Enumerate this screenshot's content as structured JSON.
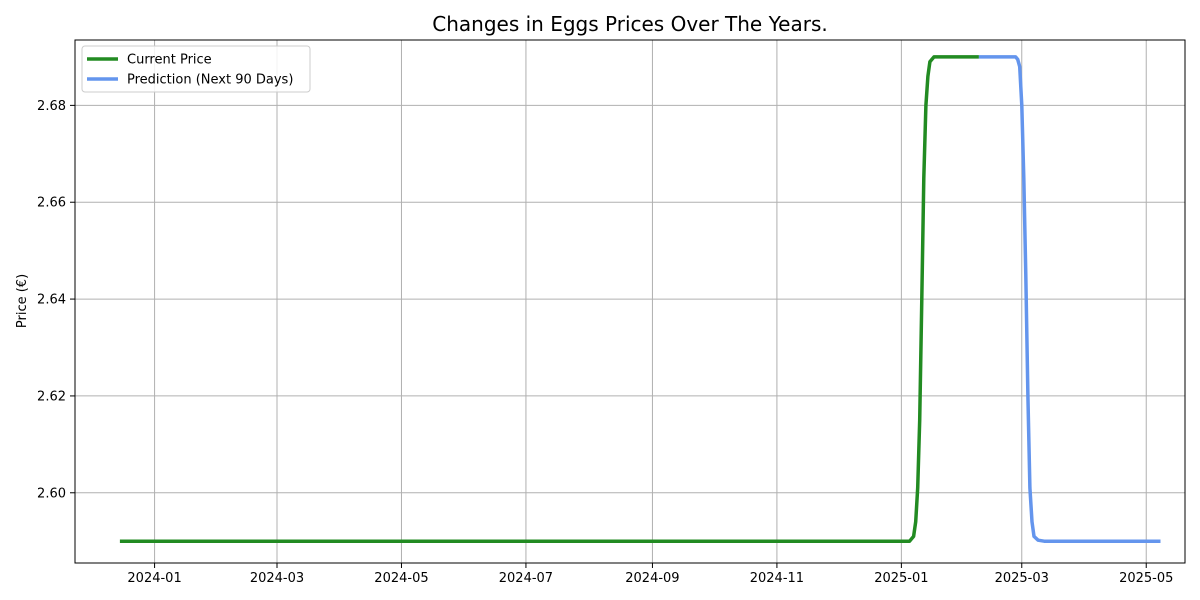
{
  "chart_data": {
    "type": "line",
    "title": "Changes in Eggs Prices Over The Years.",
    "xlabel": "",
    "ylabel": "Price (€)",
    "x_ticks": [
      "2024-01",
      "2024-03",
      "2024-05",
      "2024-07",
      "2024-09",
      "2024-11",
      "2025-01",
      "2025-03",
      "2025-05"
    ],
    "y_ticks": [
      "2.60",
      "2.62",
      "2.64",
      "2.66",
      "2.68"
    ],
    "xlim": [
      "2023-11-23",
      "2025-05-20"
    ],
    "ylim": [
      2.5855,
      2.6935
    ],
    "grid": true,
    "legend_position": "top-left",
    "series": [
      {
        "name": "Current Price",
        "color": "#228b22",
        "points": [
          [
            "2023-12-15",
            2.59
          ],
          [
            "2025-01-01",
            2.59
          ],
          [
            "2025-01-05",
            2.59
          ],
          [
            "2025-01-07",
            2.591
          ],
          [
            "2025-01-08",
            2.594
          ],
          [
            "2025-01-09",
            2.601
          ],
          [
            "2025-01-10",
            2.615
          ],
          [
            "2025-01-11",
            2.64
          ],
          [
            "2025-01-12",
            2.665
          ],
          [
            "2025-01-13",
            2.68
          ],
          [
            "2025-01-14",
            2.686
          ],
          [
            "2025-01-15",
            2.689
          ],
          [
            "2025-01-17",
            2.69
          ],
          [
            "2025-02-08",
            2.69
          ]
        ]
      },
      {
        "name": "Prediction (Next 90 Days)",
        "color": "#6495ed",
        "points": [
          [
            "2025-02-08",
            2.69
          ],
          [
            "2025-02-26",
            2.69
          ],
          [
            "2025-02-27",
            2.6895
          ],
          [
            "2025-02-28",
            2.688
          ],
          [
            "2025-03-01",
            2.68
          ],
          [
            "2025-03-02",
            2.665
          ],
          [
            "2025-03-03",
            2.645
          ],
          [
            "2025-03-04",
            2.62
          ],
          [
            "2025-03-05",
            2.601
          ],
          [
            "2025-03-06",
            2.594
          ],
          [
            "2025-03-07",
            2.591
          ],
          [
            "2025-03-09",
            2.5902
          ],
          [
            "2025-03-12",
            2.59
          ],
          [
            "2025-05-08",
            2.59
          ]
        ]
      }
    ]
  }
}
